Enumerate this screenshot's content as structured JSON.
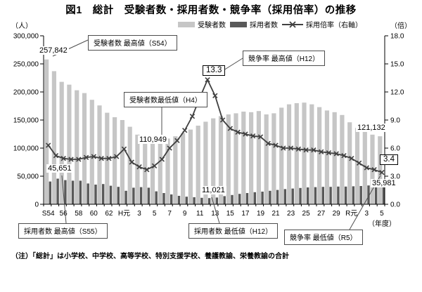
{
  "title": "図1　総計　受験者数・採用者数・競争率（採用倍率）の推移",
  "units": {
    "left": "（人）",
    "right": "（倍）",
    "x": "（年度）"
  },
  "legend": {
    "examinees": "受験者数",
    "hires": "採用者数",
    "ratio": "採用倍率（右軸）"
  },
  "axes": {
    "left_ticks": [
      "0",
      "50,000",
      "100,000",
      "150,000",
      "200,000",
      "250,000",
      "300,000"
    ],
    "right_ticks": [
      "0.0",
      "3.0",
      "6.0",
      "9.0",
      "12.0",
      "15.0",
      "18.0"
    ],
    "x_tick_labels": [
      "S54",
      "56",
      "58",
      "60",
      "62",
      "H元",
      "3",
      "5",
      "7",
      "9",
      "11",
      "13",
      "15",
      "17",
      "19",
      "21",
      "23",
      "25",
      "27",
      "29",
      "R元",
      "3",
      "5"
    ]
  },
  "chart_data": {
    "type": "bar+line",
    "categories": [
      "S54",
      "S55",
      "S56",
      "S57",
      "S58",
      "S59",
      "S60",
      "S61",
      "S62",
      "S63",
      "H元",
      "H2",
      "H3",
      "H4",
      "H5",
      "H6",
      "H7",
      "H8",
      "H9",
      "H10",
      "H11",
      "H12",
      "H13",
      "H14",
      "H15",
      "H16",
      "H17",
      "H18",
      "H19",
      "H20",
      "H21",
      "H22",
      "H23",
      "H24",
      "H25",
      "H26",
      "H27",
      "H28",
      "H29",
      "H30",
      "R元",
      "R2",
      "R3",
      "R4",
      "R5"
    ],
    "series": [
      {
        "name": "受験者数",
        "type": "bar",
        "axis": "left",
        "color": "#c6c6c6",
        "values": [
          257842,
          237000,
          218000,
          213000,
          203000,
          198000,
          186000,
          176000,
          163000,
          155000,
          150000,
          138000,
          124000,
          110949,
          112000,
          113000,
          117000,
          121000,
          127000,
          133000,
          140000,
          147000,
          153000,
          157000,
          160000,
          162000,
          165000,
          164000,
          166000,
          160000,
          162000,
          172000,
          178000,
          180000,
          181000,
          178000,
          173000,
          167000,
          164000,
          159000,
          146000,
          136000,
          130000,
          124000,
          121132
        ]
      },
      {
        "name": "採用者数",
        "type": "bar",
        "axis": "left",
        "color": "#595959",
        "values": [
          40500,
          45651,
          43000,
          42000,
          42000,
          37000,
          35000,
          36000,
          33000,
          31000,
          24000,
          29500,
          30500,
          29500,
          23000,
          20000,
          17500,
          15000,
          13500,
          12500,
          11500,
          11021,
          12000,
          14500,
          16500,
          18500,
          20000,
          21500,
          22500,
          24000,
          25500,
          27000,
          28000,
          29000,
          30000,
          30500,
          31000,
          31000,
          31500,
          31500,
          32000,
          32500,
          33500,
          34500,
          35981
        ]
      },
      {
        "name": "採用倍率",
        "type": "line",
        "axis": "right",
        "color": "#404040",
        "values": [
          6.3,
          5.2,
          4.9,
          4.8,
          4.8,
          5.0,
          5.1,
          4.9,
          4.9,
          5.1,
          5.9,
          4.5,
          4.0,
          3.7,
          4.1,
          4.8,
          6.0,
          6.8,
          7.9,
          9.4,
          11.4,
          13.3,
          11.6,
          9.0,
          8.1,
          7.7,
          7.5,
          7.3,
          7.2,
          6.5,
          6.3,
          6.0,
          6.0,
          5.9,
          5.8,
          5.8,
          5.6,
          5.5,
          5.4,
          5.2,
          4.9,
          4.4,
          3.9,
          3.7,
          3.4
        ]
      }
    ],
    "left_axis_range": [
      0,
      300000
    ],
    "right_axis_range": [
      0,
      18.0
    ],
    "xlabel": "年度",
    "ylabel_left": "人",
    "ylabel_right": "倍"
  },
  "annotations": {
    "exam_max": {
      "label": "受験者数 最高値（S54）",
      "value": "257,842"
    },
    "exam_min": {
      "label": "受験者数最低値（H4）",
      "value": "110,949"
    },
    "ratio_max": {
      "label": "競争率 最高値（H12）",
      "value": "13.3"
    },
    "hire_max": {
      "label": "採用者数 最高値（S55）",
      "value": "45,651"
    },
    "hire_min": {
      "label": "採用者数 最低値（H12）",
      "value": "11,021"
    },
    "ratio_min": {
      "label": "競争率 最低値（R5）",
      "value": "3.4"
    },
    "exam_latest": "121,132",
    "hire_latest": "35,981"
  },
  "note": "（注）「総計」は小学校、中学校、高等学校、特別支援学校、養護教諭、栄養教諭の合計"
}
